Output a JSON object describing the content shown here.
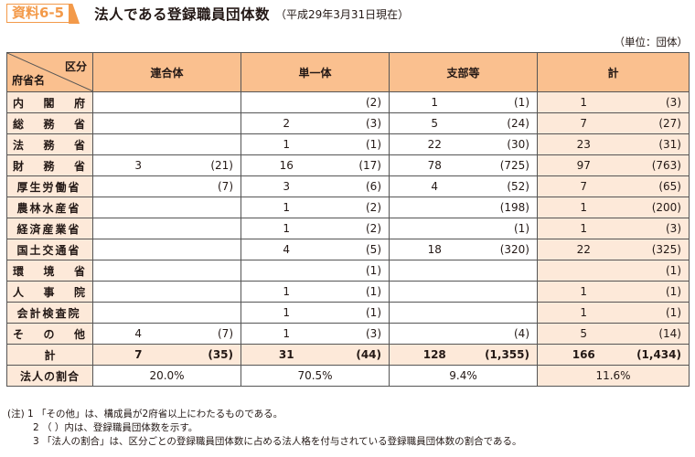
{
  "header": {
    "badge": "資料6-5",
    "title": "法人である登録職員団体数",
    "subtitle": "（平成29年3月31日現在）",
    "unit": "（単位：団体）"
  },
  "colors": {
    "accent": "#f39a4a",
    "header_bg": "#fac08f",
    "light_bg": "#fde9d9",
    "border": "#555555"
  },
  "table": {
    "corner": {
      "top_right": "区分",
      "bottom_left": "府省名"
    },
    "columns": [
      "連合体",
      "単一体",
      "支部等",
      "計"
    ],
    "rows": [
      {
        "name": [
          "内",
          "閣",
          "府"
        ],
        "cells": [
          [
            "",
            ""
          ],
          [
            "",
            "(2)"
          ],
          [
            "1",
            "(1)"
          ],
          [
            "1",
            "(3)"
          ]
        ]
      },
      {
        "name": [
          "総",
          "務",
          "省"
        ],
        "cells": [
          [
            "",
            ""
          ],
          [
            "2",
            "(3)"
          ],
          [
            "5",
            "(24)"
          ],
          [
            "7",
            "(27)"
          ]
        ]
      },
      {
        "name": [
          "法",
          "務",
          "省"
        ],
        "cells": [
          [
            "",
            ""
          ],
          [
            "1",
            "(1)"
          ],
          [
            "22",
            "(30)"
          ],
          [
            "23",
            "(31)"
          ]
        ]
      },
      {
        "name": [
          "財",
          "務",
          "省"
        ],
        "cells": [
          [
            "3",
            "(21)"
          ],
          [
            "16",
            "(17)"
          ],
          [
            "78",
            "(725)"
          ],
          [
            "97",
            "(763)"
          ]
        ]
      },
      {
        "name": [
          "厚生労働省"
        ],
        "cells": [
          [
            "",
            "(7)"
          ],
          [
            "3",
            "(6)"
          ],
          [
            "4",
            "(52)"
          ],
          [
            "7",
            "(65)"
          ]
        ]
      },
      {
        "name": [
          "農林水産省"
        ],
        "cells": [
          [
            "",
            ""
          ],
          [
            "1",
            "(2)"
          ],
          [
            "",
            "(198)"
          ],
          [
            "1",
            "(200)"
          ]
        ]
      },
      {
        "name": [
          "経済産業省"
        ],
        "cells": [
          [
            "",
            ""
          ],
          [
            "1",
            "(2)"
          ],
          [
            "",
            "(1)"
          ],
          [
            "1",
            "(3)"
          ]
        ]
      },
      {
        "name": [
          "国土交通省"
        ],
        "cells": [
          [
            "",
            ""
          ],
          [
            "4",
            "(5)"
          ],
          [
            "18",
            "(320)"
          ],
          [
            "22",
            "(325)"
          ]
        ]
      },
      {
        "name": [
          "環",
          "境",
          "省"
        ],
        "cells": [
          [
            "",
            ""
          ],
          [
            "",
            "(1)"
          ],
          [
            "",
            ""
          ],
          [
            "",
            "(1)"
          ]
        ]
      },
      {
        "name": [
          "人",
          "事",
          "院"
        ],
        "cells": [
          [
            "",
            ""
          ],
          [
            "1",
            "(1)"
          ],
          [
            "",
            ""
          ],
          [
            "1",
            "(1)"
          ]
        ]
      },
      {
        "name": [
          "会計検査院"
        ],
        "cells": [
          [
            "",
            ""
          ],
          [
            "1",
            "(1)"
          ],
          [
            "",
            ""
          ],
          [
            "1",
            "(1)"
          ]
        ]
      },
      {
        "name": [
          "そ",
          "の",
          "他"
        ],
        "cells": [
          [
            "4",
            "(7)"
          ],
          [
            "1",
            "(3)"
          ],
          [
            "",
            "(4)"
          ],
          [
            "5",
            "(14)"
          ]
        ]
      }
    ],
    "total": {
      "name": "計",
      "cells": [
        [
          "7",
          "(35)"
        ],
        [
          "31",
          "(44)"
        ],
        [
          "128",
          "(1,355)"
        ],
        [
          "166",
          "(1,434)"
        ]
      ]
    },
    "ratio": {
      "name": "法人の割合",
      "values": [
        "20.0%",
        "70.5%",
        "9.4%",
        "11.6%"
      ]
    }
  },
  "notes": [
    "(注) 1 「その他」は、構成員が2府省以上にわたるものである。",
    "2 （ ）内は、登録職員団体数を示す。",
    "3 「法人の割合」は、区分ごとの登録職員団体数に占める法人格を付与されている登録職員団体数の割合である。"
  ]
}
